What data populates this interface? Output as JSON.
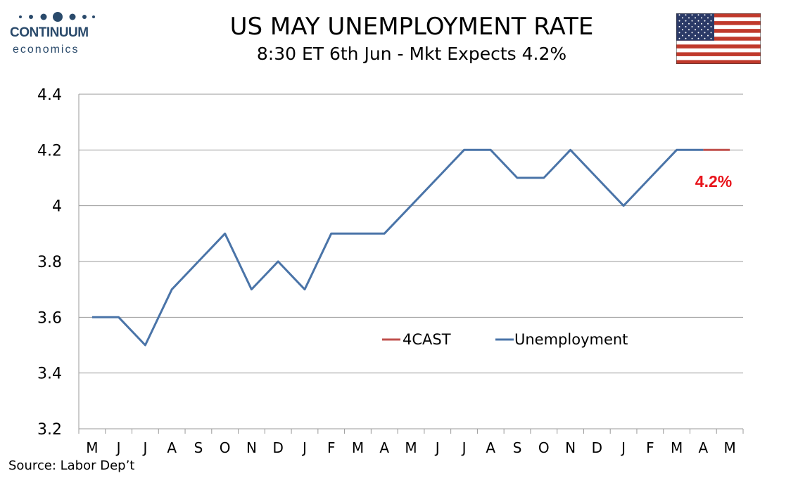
{
  "logo": {
    "name": "CONTINUUM",
    "sub": "economics"
  },
  "header": {
    "title": "US MAY UNEMPLOYMENT RATE",
    "subtitle": "8:30 ET 6th Jun - Mkt Expects 4.2%"
  },
  "footer": {
    "source": "Source: Labor Dep’t"
  },
  "colors": {
    "unemployment": "#4a74a8",
    "forecast": "#c0504d",
    "annotation": "#e8141b"
  },
  "chart_data": {
    "type": "line",
    "title": "US MAY UNEMPLOYMENT RATE",
    "subtitle": "8:30 ET 6th Jun - Mkt Expects 4.2%",
    "categories": [
      "M",
      "J",
      "J",
      "A",
      "S",
      "O",
      "N",
      "D",
      "J",
      "F",
      "M",
      "A",
      "M",
      "J",
      "J",
      "A",
      "S",
      "O",
      "N",
      "D",
      "J",
      "F",
      "M",
      "A",
      "M"
    ],
    "ylim": [
      3.2,
      4.4
    ],
    "yticks": [
      "3.2",
      "3.4",
      "3.6",
      "3.8",
      "4",
      "4.2",
      "4.4"
    ],
    "grid": true,
    "legend_position": "center-bottom",
    "series": [
      {
        "name": "4CAST",
        "values": [
          null,
          null,
          null,
          null,
          null,
          null,
          null,
          null,
          null,
          null,
          null,
          null,
          null,
          null,
          null,
          null,
          null,
          null,
          null,
          null,
          null,
          null,
          null,
          4.2,
          4.2
        ]
      },
      {
        "name": "Unemployment",
        "values": [
          3.6,
          3.6,
          3.5,
          3.7,
          3.8,
          3.9,
          3.7,
          3.8,
          3.7,
          3.9,
          3.9,
          3.9,
          4.0,
          4.1,
          4.2,
          4.2,
          4.1,
          4.1,
          4.2,
          4.1,
          4.0,
          4.1,
          4.2,
          4.2,
          null
        ]
      }
    ],
    "annotation": "4.2%"
  }
}
